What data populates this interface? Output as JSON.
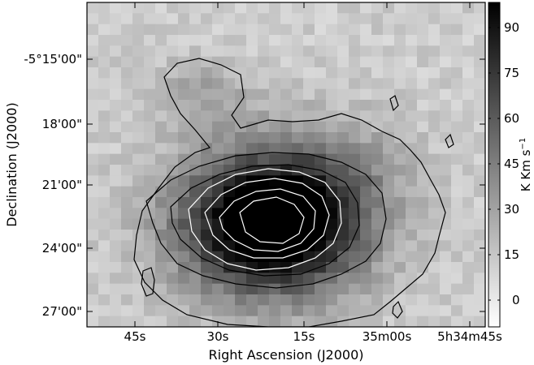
{
  "figure": {
    "xlabel": "Right Ascension (J2000)",
    "ylabel": "Declination (J2000)",
    "x_ticks": [
      "45s",
      "30s",
      "15s",
      "35m00s",
      "5h34m45s"
    ],
    "y_ticks": [
      "-5°15'00\"",
      "18'00\"",
      "21'00\"",
      "24'00\"",
      "27'00\""
    ],
    "colorbar": {
      "label": "K Km s",
      "label_exponent": "−1",
      "ticks": [
        "90",
        "75",
        "60",
        "45",
        "30",
        "15",
        "0"
      ],
      "range": [
        -10,
        100
      ],
      "colormap": "gray_r"
    },
    "image": {
      "type": "integrated intensity map",
      "contours_black": 3,
      "contours_white": 4
    }
  }
}
